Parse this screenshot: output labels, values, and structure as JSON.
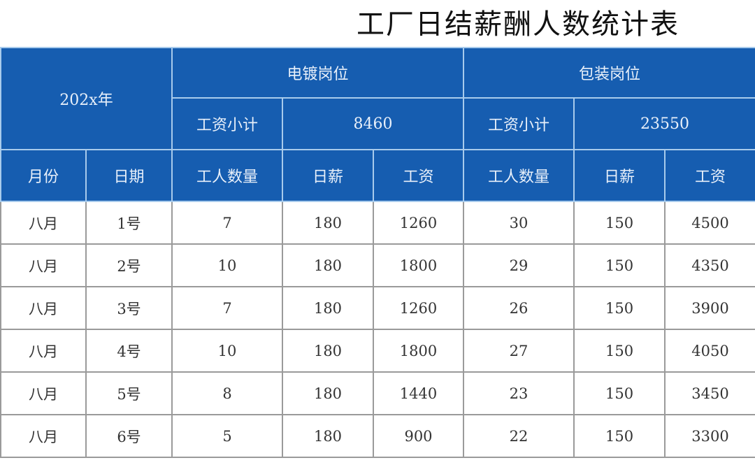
{
  "title": "工厂日结薪酬人数统计表",
  "colors": {
    "header_bg": "#165db0",
    "header_text": "#e8f0fa"
  },
  "header": {
    "year": "202x年",
    "group1": {
      "name": "电镀岗位",
      "subtotal_label": "工资小计",
      "subtotal": "8460"
    },
    "group2": {
      "name": "包装岗位",
      "subtotal_label": "工资小计",
      "subtotal": "23550"
    },
    "columns": [
      "月份",
      "日期",
      "工人数量",
      "日薪",
      "工资",
      "工人数量",
      "日薪",
      "工资"
    ]
  },
  "rows": [
    [
      "八月",
      "1号",
      "7",
      "180",
      "1260",
      "30",
      "150",
      "4500"
    ],
    [
      "八月",
      "2号",
      "10",
      "180",
      "1800",
      "29",
      "150",
      "4350"
    ],
    [
      "八月",
      "3号",
      "7",
      "180",
      "1260",
      "26",
      "150",
      "3900"
    ],
    [
      "八月",
      "4号",
      "10",
      "180",
      "1800",
      "27",
      "150",
      "4050"
    ],
    [
      "八月",
      "5号",
      "8",
      "180",
      "1440",
      "23",
      "150",
      "3450"
    ],
    [
      "八月",
      "6号",
      "5",
      "180",
      "900",
      "22",
      "150",
      "3300"
    ]
  ]
}
